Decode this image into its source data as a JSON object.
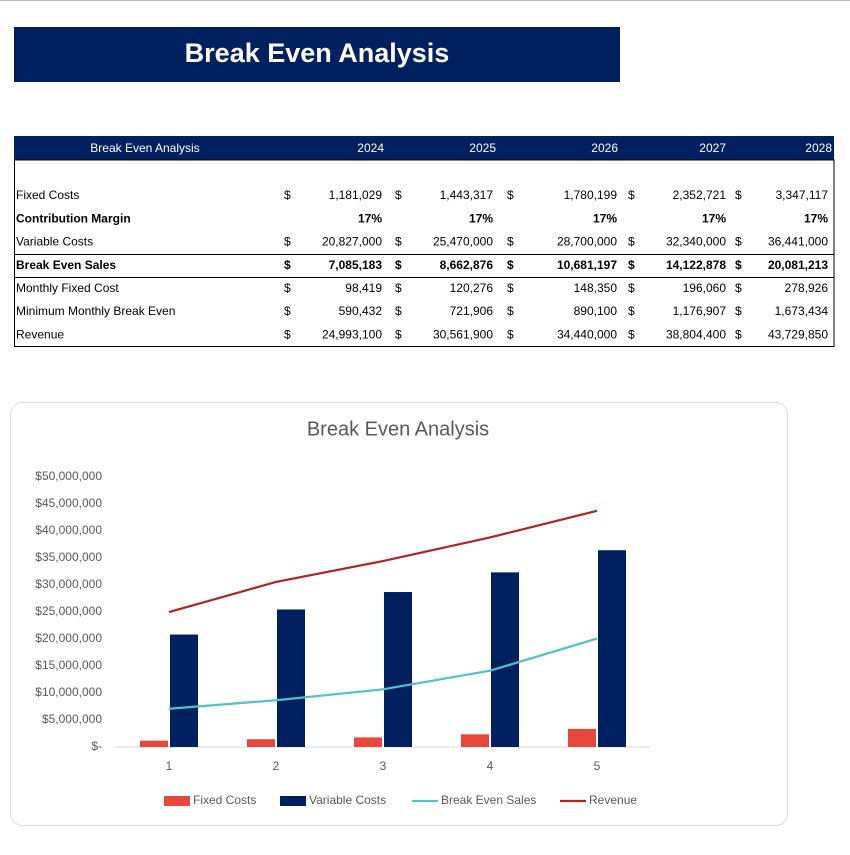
{
  "header": {
    "title": "Break Even Analysis"
  },
  "table": {
    "columns": [
      "Break Even Analysis",
      "2024",
      "2025",
      "2026",
      "2027",
      "2028"
    ],
    "rows": [
      [
        "Fixed Costs",
        "$",
        "1,181,029",
        "$",
        "1,443,317",
        "$",
        "1,780,199",
        "$",
        "2,352,721",
        "$",
        "3,347,117"
      ],
      [
        "Contribution Margin",
        null,
        "17%",
        null,
        "17%",
        null,
        "17%",
        null,
        "17%",
        null,
        "17%"
      ],
      [
        "Variable Costs",
        "$",
        "20,827,000",
        "$",
        "25,470,000",
        "$",
        "28,700,000",
        "$",
        "32,340,000",
        "$",
        "36,441,000"
      ],
      [
        "Break Even Sales",
        "$",
        "7,085,183",
        "$",
        "8,662,876",
        "$",
        "10,681,197",
        "$",
        "14,122,878",
        "$",
        "20,081,213"
      ],
      [
        "Monthly Fixed Cost",
        "$",
        "98,419",
        "$",
        "120,276",
        "$",
        "148,350",
        "$",
        "196,060",
        "$",
        "278,926"
      ],
      [
        "Minimum Monthly Break Even",
        "$",
        "590,432",
        "$",
        "721,906",
        "$",
        "890,100",
        "$",
        "1,176,907",
        "$",
        "1,673,434"
      ],
      [
        "Revenue",
        "$",
        "24,993,100",
        "$",
        "30,561,900",
        "$",
        "34,440,000",
        "$",
        "38,804,400",
        "$",
        "43,729,850"
      ]
    ]
  },
  "chart_data": {
    "type": "bar-line",
    "title": "Break Even Analysis",
    "categories": [
      1,
      2,
      3,
      4,
      5
    ],
    "series": [
      {
        "name": "Fixed Costs",
        "type": "bar",
        "color": "#e8483c",
        "values": [
          1181029,
          1443317,
          1780199,
          2352721,
          3347117
        ]
      },
      {
        "name": "Variable Costs",
        "type": "bar",
        "color": "#002060",
        "values": [
          20827000,
          25470000,
          28700000,
          32340000,
          36441000
        ]
      },
      {
        "name": "Break Even Sales",
        "type": "line",
        "color": "#4fc3c8",
        "values": [
          7085183,
          8662876,
          10681197,
          14122878,
          20081213
        ]
      },
      {
        "name": "Revenue",
        "type": "line",
        "color": "#b22222",
        "values": [
          24993100,
          30561900,
          34440000,
          38804400,
          43729850
        ]
      }
    ],
    "ylim": [
      0,
      50000000
    ],
    "yticks": [
      {
        "value": 0,
        "label": "$-"
      },
      {
        "value": 5000000,
        "label": "$5,000,000"
      },
      {
        "value": 10000000,
        "label": "$10,000,000"
      },
      {
        "value": 15000000,
        "label": "$15,000,000"
      },
      {
        "value": 20000000,
        "label": "$20,000,000"
      },
      {
        "value": 25000000,
        "label": "$25,000,000"
      },
      {
        "value": 30000000,
        "label": "$30,000,000"
      },
      {
        "value": 35000000,
        "label": "$35,000,000"
      },
      {
        "value": 40000000,
        "label": "$40,000,000"
      },
      {
        "value": 45000000,
        "label": "$45,000,000"
      },
      {
        "value": 50000000,
        "label": "$50,000,000"
      }
    ],
    "grid": false,
    "legend": "bottom"
  }
}
